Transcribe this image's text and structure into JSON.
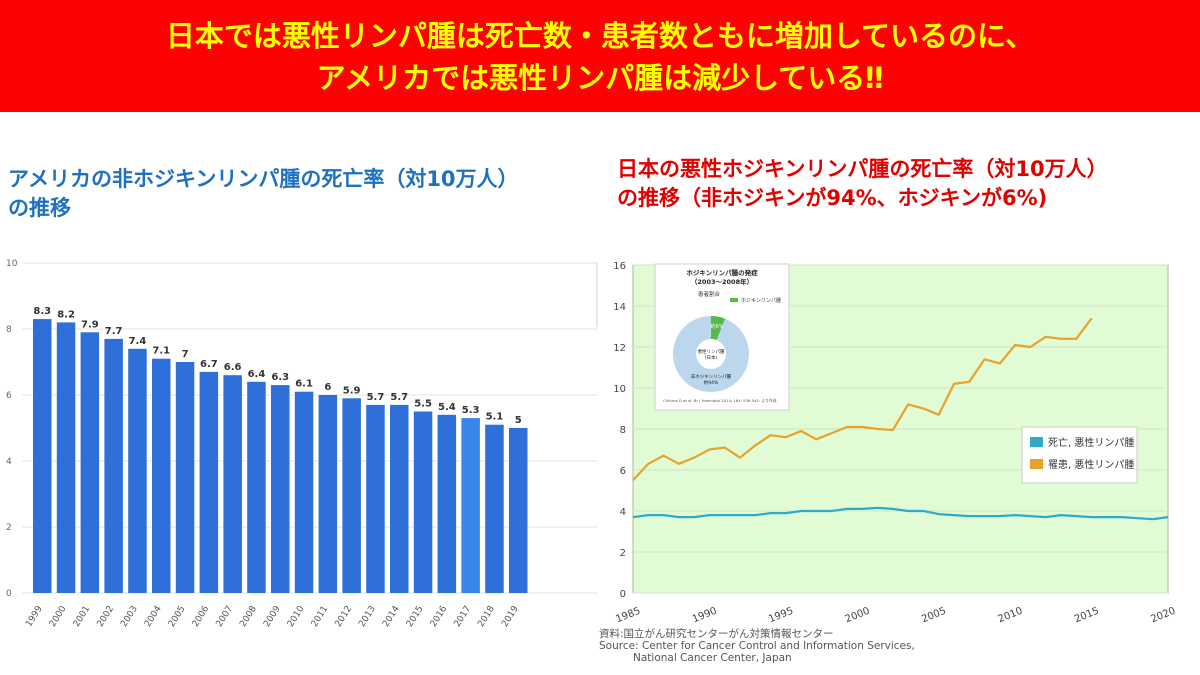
{
  "banner": {
    "line1": "日本では悪性リンパ腫は死亡数・患者数ともに増加しているのに、",
    "line2": "アメリカでは悪性リンパ腫は減少している‼"
  },
  "us_chart": {
    "title_line1": "アメリカの非ホジキンリンパ腫の死亡率（対10万人）",
    "title_line2": "の推移"
  },
  "jp_chart": {
    "title_line1": "日本の悪性ホジキンリンパ腫の死亡率（対10万人）",
    "title_line2": "の推移（非ホジキンが94%、ホジキンが6%)",
    "inset": {
      "title_line1": "ホジキンリンパ腫の発症",
      "title_line2": "（2003〜2008年）",
      "sub": "患者割合",
      "legend": "ホジキンリンパ腫",
      "slice_label": "約6%",
      "center_line1": "悪性リンパ腫",
      "center_line2": "(日本)",
      "bottom_line1": "非ホジキンリンパ腫",
      "bottom_line2": "約94%",
      "citation": "Chihara D et al. Br J Haematol 2014; 164: 536-545. より作成"
    },
    "source_line1": "資料:国立がん研究センターがん対策情報センター",
    "source_line2": "Source: Center for Cancer Control and Information Services,",
    "source_line3": "National Cancer Center, Japan"
  },
  "chart_data": [
    {
      "type": "bar",
      "categories": [
        "1999",
        "2000",
        "2001",
        "2002",
        "2003",
        "2004",
        "2005",
        "2006",
        "2007",
        "2008",
        "2009",
        "2010",
        "2011",
        "2012",
        "2013",
        "2014",
        "2015",
        "2016",
        "2017",
        "2018",
        "2019"
      ],
      "values": [
        8.3,
        8.2,
        7.9,
        7.7,
        7.4,
        7.1,
        7,
        6.7,
        6.6,
        6.4,
        6.3,
        6.1,
        6,
        5.9,
        5.7,
        5.7,
        5.5,
        5.4,
        5.3,
        5.1,
        5
      ],
      "data_labels": [
        "8.3",
        "8.2",
        "7.9",
        "7.7",
        "7.4",
        "7.1",
        "7",
        "6.7",
        "6.6",
        "6.4",
        "6.3",
        "6.1",
        "6",
        "5.9",
        "5.7",
        "5.7",
        "5.5",
        "5.4",
        "5.3",
        "5.1",
        "5"
      ],
      "yticks": [
        "0",
        "2",
        "4",
        "6",
        "8",
        "10"
      ],
      "ylim": [
        0,
        10
      ],
      "colors": {
        "bar": "#2e6fd9",
        "highlight": "#3a86e8"
      }
    },
    {
      "type": "line",
      "x_ticks": [
        "1985",
        "1990",
        "1995",
        "2000",
        "2005",
        "2010",
        "2015",
        "2020"
      ],
      "xlim": [
        1985,
        2020
      ],
      "ylim": [
        0,
        16
      ],
      "yticks": [
        "0",
        "2",
        "4",
        "6",
        "8",
        "10",
        "12",
        "14",
        "16"
      ],
      "grid": true,
      "legend_position": "right",
      "series": [
        {
          "name": "死亡, 悪性リンパ腫",
          "color": "#31a9c9",
          "x": [
            1985,
            1986,
            1987,
            1988,
            1989,
            1990,
            1991,
            1992,
            1993,
            1994,
            1995,
            1996,
            1997,
            1998,
            1999,
            2000,
            2001,
            2002,
            2003,
            2004,
            2005,
            2006,
            2007,
            2008,
            2009,
            2010,
            2011,
            2012,
            2013,
            2014,
            2015,
            2016,
            2017,
            2018,
            2019,
            2020
          ],
          "values": [
            3.7,
            3.8,
            3.8,
            3.7,
            3.7,
            3.8,
            3.8,
            3.8,
            3.8,
            3.9,
            3.9,
            4.0,
            4.0,
            4.0,
            4.1,
            4.1,
            4.15,
            4.1,
            4.0,
            4.0,
            3.85,
            3.8,
            3.75,
            3.75,
            3.75,
            3.8,
            3.75,
            3.7,
            3.8,
            3.75,
            3.7,
            3.7,
            3.7,
            3.65,
            3.6,
            3.7
          ]
        },
        {
          "name": "罹患, 悪性リンパ腫",
          "color": "#e8a22c",
          "x": [
            1985,
            1986,
            1987,
            1988,
            1989,
            1990,
            1991,
            1992,
            1993,
            1994,
            1995,
            1996,
            1997,
            1998,
            1999,
            2000,
            2001,
            2002,
            2003,
            2004,
            2005,
            2006,
            2007,
            2008,
            2009,
            2010,
            2011,
            2012,
            2013,
            2014,
            2015
          ],
          "values": [
            5.5,
            6.3,
            6.7,
            6.3,
            6.6,
            7.0,
            7.1,
            6.6,
            7.2,
            7.7,
            7.6,
            7.9,
            7.5,
            7.8,
            8.1,
            8.1,
            8.0,
            7.95,
            9.2,
            9.0,
            8.7,
            10.2,
            10.3,
            11.4,
            11.2,
            12.1,
            12.0,
            12.5,
            12.4,
            12.4,
            13.4
          ]
        }
      ],
      "colors": {
        "plot_bg": "#e1fbd4",
        "grid": "#cfe6c6"
      }
    }
  ]
}
